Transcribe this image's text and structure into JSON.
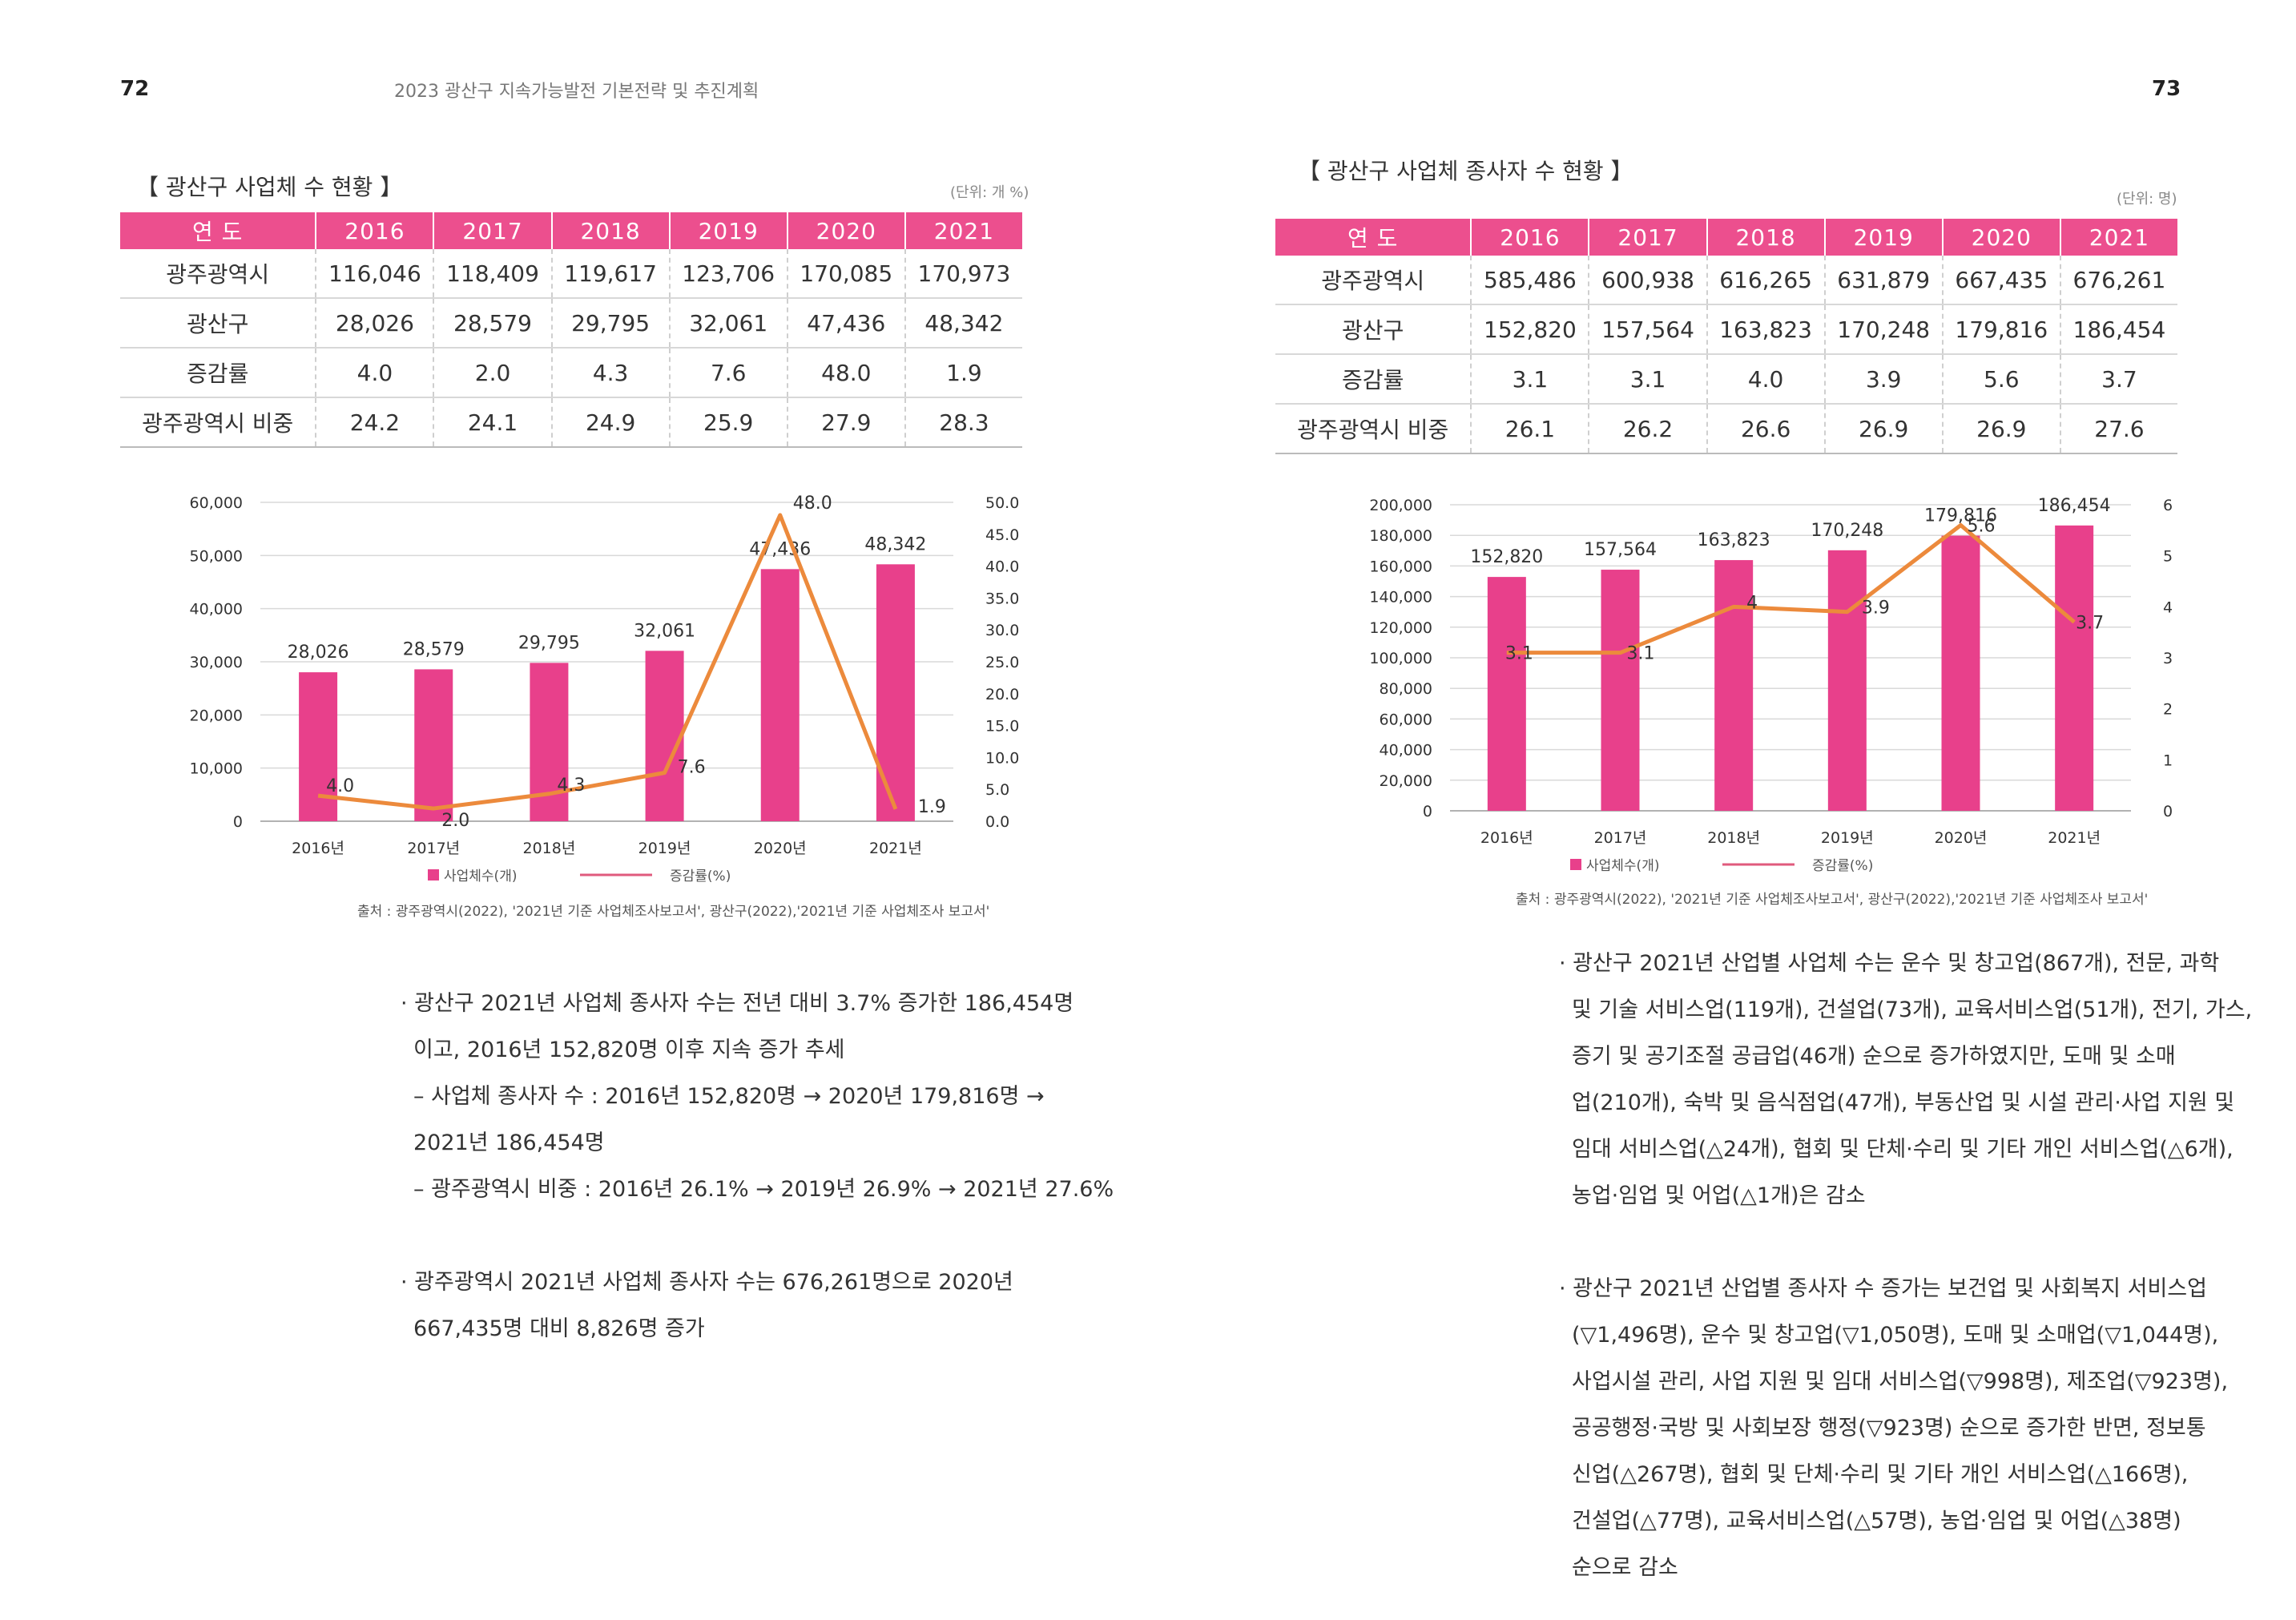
{
  "left_page": {
    "page_number": "72",
    "header": "2023 광산구 지속가능발전 기본전략 및 추진계획",
    "section_title": "【 광산구 사업체 수 현황 】",
    "unit": "(단위: 개 %)",
    "table": {
      "headers": [
        "연  도",
        "2016",
        "2017",
        "2018",
        "2019",
        "2020",
        "2021"
      ],
      "rows": [
        {
          "label": "광주광역시",
          "values": [
            "116,046",
            "118,409",
            "119,617",
            "123,706",
            "170,085",
            "170,973"
          ]
        },
        {
          "label": "광산구",
          "values": [
            "28,026",
            "28,579",
            "29,795",
            "32,061",
            "47,436",
            "48,342"
          ]
        },
        {
          "label": "증감률",
          "values": [
            "4.0",
            "2.0",
            "4.3",
            "7.6",
            "48.0",
            "1.9"
          ]
        },
        {
          "label": "광주광역시 비중",
          "values": [
            "24.2",
            "24.1",
            "24.9",
            "25.9",
            "27.9",
            "28.3"
          ]
        }
      ]
    },
    "source": "출처 : 광주광역시(2022), '2021년 기준 사업체조사보고서', 광산구(2022),'2021년 기준 사업체조사 보고서'",
    "paragraphs": [
      [
        "· 광산구 2021년 사업체 종사자 수는 전년 대비 3.7% 증가한 186,454명",
        "이고, 2016년 152,820명 이후 지속 증가 추세",
        "– 사업체 종사자 수 : 2016년 152,820명 → 2020년 179,816명 →",
        "2021년 186,454명",
        "– 광주광역시 비중 : 2016년 26.1% → 2019년 26.9% → 2021년 27.6%"
      ],
      [
        "· 광주광역시 2021년 사업체 종사자 수는 676,261명으로 2020년",
        "667,435명 대비 8,826명 증가"
      ]
    ]
  },
  "right_page": {
    "page_number": "73",
    "section_title": "【 광산구 사업체 종사자 수 현황 】",
    "unit": "(단위: 명)",
    "table": {
      "headers": [
        "연  도",
        "2016",
        "2017",
        "2018",
        "2019",
        "2020",
        "2021"
      ],
      "rows": [
        {
          "label": "광주광역시",
          "values": [
            "585,486",
            "600,938",
            "616,265",
            "631,879",
            "667,435",
            "676,261"
          ]
        },
        {
          "label": "광산구",
          "values": [
            "152,820",
            "157,564",
            "163,823",
            "170,248",
            "179,816",
            "186,454"
          ]
        },
        {
          "label": "증감률",
          "values": [
            "3.1",
            "3.1",
            "4.0",
            "3.9",
            "5.6",
            "3.7"
          ]
        },
        {
          "label": "광주광역시 비중",
          "values": [
            "26.1",
            "26.2",
            "26.6",
            "26.9",
            "26.9",
            "27.6"
          ]
        }
      ]
    },
    "source": "출처 : 광주광역시(2022), '2021년 기준 사업체조사보고서', 광산구(2022),'2021년 기준 사업체조사 보고서'",
    "paragraphs": [
      [
        "· 광산구 2021년 산업별 사업체 수는 운수 및 창고업(867개), 전문, 과학",
        "및 기술 서비스업(119개), 건설업(73개), 교육서비스업(51개), 전기, 가스,",
        "증기 및 공기조절 공급업(46개) 순으로 증가하였지만, 도매 및 소매",
        "업(210개), 숙박 및 음식점업(47개), 부동산업 및 시설 관리·사업 지원 및",
        "임대 서비스업(△24개), 협회 및 단체·수리 및 기타 개인 서비스업(△6개),",
        "농업·임업 및 어업(△1개)은 감소"
      ],
      [
        "· 광산구 2021년 산업별 종사자 수 증가는 보건업 및 사회복지 서비스업",
        "(▽1,496명), 운수 및 창고업(▽1,050명), 도매 및 소매업(▽1,044명),",
        "사업시설 관리, 사업 지원 및 임대 서비스업(▽998명), 제조업(▽923명),",
        "공공행정·국방 및 사회보장 행정(▽923명) 순으로 증가한 반면, 정보통",
        "신업(△267명), 협회 및 단체·수리 및 기타 개인 서비스업(△166명),",
        "건설업(△77명), 교육서비스업(△57명), 농업·임업 및 어업(△38명)",
        "순으로 감소"
      ]
    ]
  },
  "colors": {
    "bar": "#e8408b",
    "line": "#ec8a3c",
    "table_header": "#ec4f8e"
  },
  "chart_data": [
    {
      "type": "bar",
      "categories": [
        "2016년",
        "2017년",
        "2018년",
        "2019년",
        "2020년",
        "2021년"
      ],
      "series": [
        {
          "name": "사업체수(개)",
          "type": "bar",
          "axis": "left",
          "values": [
            28026,
            28579,
            29795,
            32061,
            47436,
            48342
          ],
          "labels": [
            "28,026",
            "28,579",
            "29,795",
            "32,061",
            "47,436",
            "48,342"
          ]
        },
        {
          "name": "증감률(%)",
          "type": "line",
          "axis": "right",
          "values": [
            4.0,
            2.0,
            4.3,
            7.6,
            48.0,
            1.9
          ],
          "labels": [
            "4.0",
            "2.0",
            "4.3",
            "7.6",
            "48.0",
            "1.9"
          ]
        }
      ],
      "ylim": [
        0,
        60000
      ],
      "yticks": [
        "0",
        "10,000",
        "20,000",
        "30,000",
        "40,000",
        "50,000",
        "60,000"
      ],
      "y2lim": [
        0,
        50
      ],
      "y2ticks": [
        "0.0",
        "5.0",
        "10.0",
        "15.0",
        "20.0",
        "25.0",
        "30.0",
        "35.0",
        "40.0",
        "45.0",
        "50.0"
      ],
      "grid": true,
      "legend": "bottom"
    },
    {
      "type": "bar",
      "categories": [
        "2016년",
        "2017년",
        "2018년",
        "2019년",
        "2020년",
        "2021년"
      ],
      "series": [
        {
          "name": "사업체수(개)",
          "type": "bar",
          "axis": "left",
          "values": [
            152820,
            157564,
            163823,
            170248,
            179816,
            186454
          ],
          "labels": [
            "152,820",
            "157,564",
            "163,823",
            "170,248",
            "179,816",
            "186,454"
          ]
        },
        {
          "name": "증감률(%)",
          "type": "line",
          "axis": "right",
          "values": [
            3.1,
            3.1,
            4.0,
            3.9,
            5.6,
            3.7
          ],
          "labels": [
            "3.1",
            "3.1",
            "4",
            "3.9",
            "5.6",
            "3.7"
          ]
        }
      ],
      "ylim": [
        0,
        200000
      ],
      "yticks": [
        "0",
        "20,000",
        "40,000",
        "60,000",
        "80,000",
        "100,000",
        "120,000",
        "140,000",
        "160,000",
        "180,000",
        "200,000"
      ],
      "y2lim": [
        0,
        6
      ],
      "y2ticks": [
        "0",
        "1",
        "2",
        "3",
        "4",
        "5",
        "6"
      ],
      "grid": true,
      "legend": "bottom"
    }
  ]
}
